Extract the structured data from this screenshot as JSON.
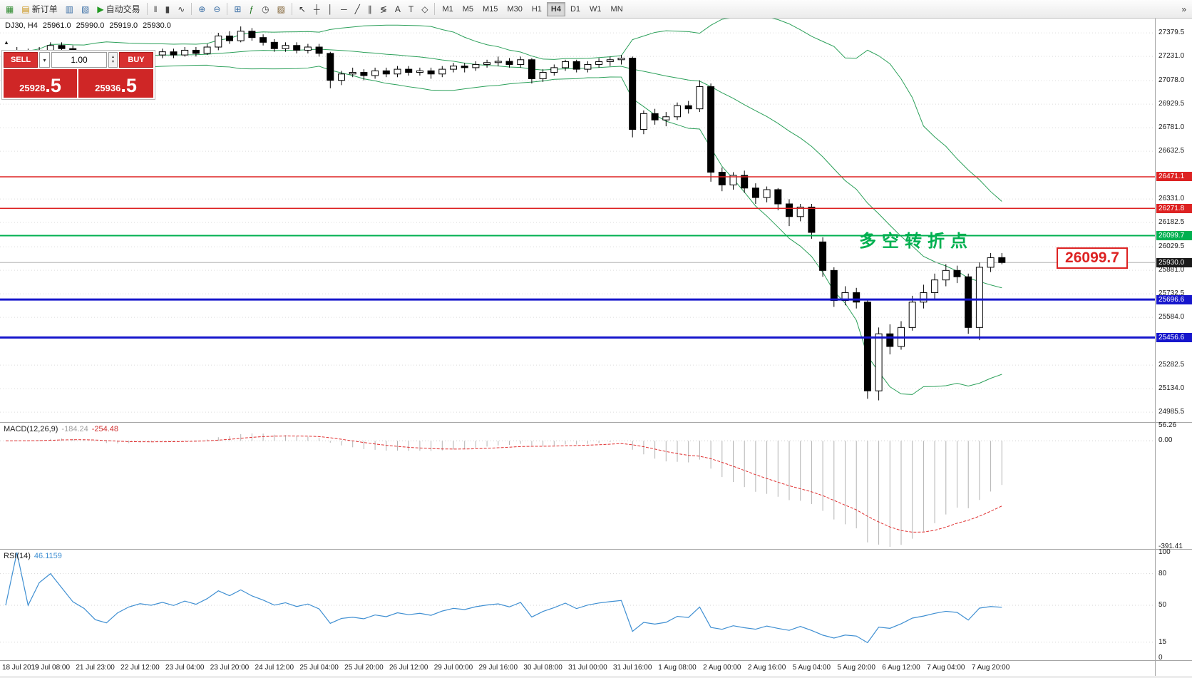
{
  "toolbar": {
    "groups": [
      {
        "name": "standard",
        "items": [
          {
            "name": "new-chart-button",
            "icon": "chart-grid-icon",
            "glyph": "▦",
            "color": "#2d8a2d"
          },
          {
            "name": "new-order-button",
            "icon": "new-order-icon",
            "glyph": "▤",
            "color": "#c89010",
            "label": "新订单"
          },
          {
            "name": "market-watch-button",
            "icon": "market-watch-icon",
            "glyph": "▥",
            "color": "#3a6ea5"
          },
          {
            "name": "navigator-button",
            "icon": "navigator-icon",
            "glyph": "▧",
            "color": "#3a6ea5"
          },
          {
            "name": "autotrading-button",
            "icon": "play-icon",
            "glyph": "▶",
            "color": "#229a22",
            "label": "自动交易"
          }
        ]
      },
      {
        "name": "chart-type",
        "items": [
          {
            "name": "bar-chart-button",
            "icon": "bars-icon",
            "glyph": "‖",
            "color": "#444444"
          },
          {
            "name": "candlestick-chart-button",
            "icon": "candlestick-icon",
            "glyph": "▮",
            "color": "#444444"
          },
          {
            "name": "line-chart-button",
            "icon": "line-chart-icon",
            "glyph": "∿",
            "color": "#444444"
          }
        ]
      },
      {
        "name": "zoom",
        "items": [
          {
            "name": "zoom-in-button",
            "icon": "zoom-in-icon",
            "glyph": "⊕",
            "color": "#3a6ea5"
          },
          {
            "name": "zoom-out-button",
            "icon": "zoom-out-icon",
            "glyph": "⊖",
            "color": "#3a6ea5"
          }
        ]
      },
      {
        "name": "windows",
        "items": [
          {
            "name": "tile-windows-button",
            "icon": "tile-windows-icon",
            "glyph": "⊞",
            "color": "#3a6ea5"
          },
          {
            "name": "indicators-button",
            "icon": "indicators-icon",
            "glyph": "ƒ",
            "color": "#207520"
          },
          {
            "name": "periods-button",
            "icon": "clock-icon",
            "glyph": "◷",
            "color": "#444444"
          },
          {
            "name": "templates-button",
            "icon": "templates-icon",
            "glyph": "▨",
            "color": "#7a5a2a"
          }
        ]
      },
      {
        "name": "tools",
        "items": [
          {
            "name": "cursor-button",
            "icon": "cursor-icon",
            "glyph": "↖",
            "color": "#333333"
          },
          {
            "name": "crosshair-button",
            "icon": "crosshair-icon",
            "glyph": "┼",
            "color": "#333333"
          },
          {
            "name": "vertical-line-button",
            "icon": "vertical-line-icon",
            "glyph": "│",
            "color": "#333333"
          },
          {
            "name": "horizontal-line-button",
            "icon": "horizontal-line-icon",
            "glyph": "─",
            "color": "#333333"
          },
          {
            "name": "trendline-button",
            "icon": "trendline-icon",
            "glyph": "╱",
            "color": "#333333"
          },
          {
            "name": "channel-button",
            "icon": "channel-icon",
            "glyph": "∥",
            "color": "#333333"
          },
          {
            "name": "fibonacci-button",
            "icon": "fibonacci-icon",
            "glyph": "≶",
            "color": "#333333"
          },
          {
            "name": "text-button",
            "icon": "text-icon",
            "glyph": "A",
            "color": "#333333"
          },
          {
            "name": "label-button",
            "icon": "label-icon",
            "glyph": "T",
            "color": "#333333"
          },
          {
            "name": "shapes-button",
            "icon": "shapes-icon",
            "glyph": "◇",
            "color": "#333333"
          }
        ]
      },
      {
        "name": "timeframes",
        "items": [
          {
            "name": "tf-m1-button",
            "label": "M1"
          },
          {
            "name": "tf-m5-button",
            "label": "M5"
          },
          {
            "name": "tf-m15-button",
            "label": "M15"
          },
          {
            "name": "tf-m30-button",
            "label": "M30"
          },
          {
            "name": "tf-h1-button",
            "label": "H1"
          },
          {
            "name": "tf-h4-button",
            "label": "H4",
            "active": true
          },
          {
            "name": "tf-d1-button",
            "label": "D1"
          },
          {
            "name": "tf-w1-button",
            "label": "W1"
          },
          {
            "name": "tf-mn-button",
            "label": "MN"
          }
        ]
      }
    ],
    "overflow": {
      "name": "toolbar-overflow-button",
      "glyph": "»"
    }
  },
  "trade_panel": {
    "collapse_icon": "▲",
    "sell_label": "SELL",
    "buy_label": "BUY",
    "volume": "1.00",
    "dropdown_icon": "▾",
    "spinner_up_icon": "▴",
    "spinner_down_icon": "▾",
    "sell_price_main": "25928",
    "sell_price_big": ".5",
    "buy_price_main": "25936",
    "buy_price_big": ".5"
  },
  "chart_data": {
    "type": "candlestick",
    "symbol": "DJ30",
    "timeframe": "H4",
    "title": "DJ30, H4",
    "last_ohlc": {
      "open": "25961.0",
      "high": "25990.0",
      "low": "25919.0",
      "close": "25930.0"
    },
    "ylim": [
      24923,
      27470
    ],
    "y_ticks": [
      "27379.5",
      "27231.0",
      "27078.0",
      "26929.5",
      "26781.0",
      "26632.5",
      "26331.0",
      "26182.5",
      "26029.5",
      "25881.0",
      "25732.5",
      "25584.0",
      "25282.5",
      "25134.0",
      "24985.5"
    ],
    "x_labels": [
      "18 Jul 2019",
      "19 Jul 08:00",
      "21 Jul 23:00",
      "22 Jul 12:00",
      "23 Jul 04:00",
      "23 Jul 20:00",
      "24 Jul 12:00",
      "25 Jul 04:00",
      "25 Jul 20:00",
      "26 Jul 12:00",
      "29 Jul 00:00",
      "29 Jul 16:00",
      "30 Jul 08:00",
      "31 Jul 00:00",
      "31 Jul 16:00",
      "1 Aug 08:00",
      "2 Aug 00:00",
      "2 Aug 16:00",
      "5 Aug 04:00",
      "5 Aug 20:00",
      "6 Aug 12:00",
      "7 Aug 04:00",
      "7 Aug 20:00"
    ],
    "ohlc": [
      [
        27200,
        27260,
        27170,
        27240
      ],
      [
        27240,
        27290,
        27210,
        27260
      ],
      [
        27260,
        27280,
        27210,
        27240
      ],
      [
        27240,
        27290,
        27220,
        27270
      ],
      [
        27270,
        27320,
        27250,
        27300
      ],
      [
        27300,
        27320,
        27260,
        27280
      ],
      [
        27280,
        27300,
        27230,
        27250
      ],
      [
        27250,
        27270,
        27200,
        27230
      ],
      [
        27230,
        27250,
        27150,
        27180
      ],
      [
        27180,
        27210,
        27130,
        27160
      ],
      [
        27160,
        27220,
        27140,
        27200
      ],
      [
        27200,
        27250,
        27180,
        27230
      ],
      [
        27230,
        27270,
        27200,
        27250
      ],
      [
        27250,
        27270,
        27210,
        27240
      ],
      [
        27240,
        27280,
        27220,
        27260
      ],
      [
        27260,
        27280,
        27220,
        27240
      ],
      [
        27240,
        27290,
        27230,
        27270
      ],
      [
        27270,
        27290,
        27230,
        27250
      ],
      [
        27250,
        27310,
        27240,
        27290
      ],
      [
        27290,
        27380,
        27270,
        27360
      ],
      [
        27360,
        27390,
        27310,
        27330
      ],
      [
        27330,
        27420,
        27320,
        27390
      ],
      [
        27390,
        27410,
        27330,
        27350
      ],
      [
        27350,
        27370,
        27300,
        27320
      ],
      [
        27320,
        27340,
        27260,
        27280
      ],
      [
        27280,
        27320,
        27260,
        27300
      ],
      [
        27300,
        27320,
        27250,
        27270
      ],
      [
        27270,
        27310,
        27250,
        27290
      ],
      [
        27290,
        27310,
        27230,
        27250
      ],
      [
        27250,
        27260,
        27030,
        27080
      ],
      [
        27080,
        27140,
        27050,
        27120
      ],
      [
        27120,
        27160,
        27100,
        27130
      ],
      [
        27130,
        27150,
        27080,
        27110
      ],
      [
        27110,
        27160,
        27090,
        27140
      ],
      [
        27140,
        27160,
        27100,
        27120
      ],
      [
        27120,
        27170,
        27100,
        27150
      ],
      [
        27150,
        27170,
        27110,
        27130
      ],
      [
        27130,
        27160,
        27110,
        27140
      ],
      [
        27140,
        27160,
        27090,
        27120
      ],
      [
        27120,
        27170,
        27100,
        27150
      ],
      [
        27150,
        27190,
        27130,
        27170
      ],
      [
        27170,
        27190,
        27130,
        27160
      ],
      [
        27160,
        27200,
        27140,
        27180
      ],
      [
        27180,
        27210,
        27160,
        27192
      ],
      [
        27192,
        27230,
        27170,
        27200
      ],
      [
        27200,
        27220,
        27160,
        27180
      ],
      [
        27180,
        27230,
        27160,
        27210
      ],
      [
        27210,
        27220,
        27060,
        27090
      ],
      [
        27090,
        27150,
        27070,
        27130
      ],
      [
        27130,
        27180,
        27110,
        27160
      ],
      [
        27160,
        27210,
        27140,
        27198
      ],
      [
        27198,
        27210,
        27130,
        27150
      ],
      [
        27150,
        27200,
        27130,
        27180
      ],
      [
        27180,
        27220,
        27160,
        27198
      ],
      [
        27198,
        27230,
        27170,
        27210
      ],
      [
        27210,
        27240,
        27180,
        27220
      ],
      [
        27220,
        27230,
        26720,
        26770
      ],
      [
        26770,
        26890,
        26740,
        26870
      ],
      [
        26870,
        26900,
        26800,
        26830
      ],
      [
        26830,
        26880,
        26790,
        26850
      ],
      [
        26850,
        26940,
        26830,
        26920
      ],
      [
        26920,
        26950,
        26870,
        26900
      ],
      [
        26900,
        27080,
        26880,
        27040
      ],
      [
        27040,
        27060,
        26440,
        26500
      ],
      [
        26500,
        26530,
        26380,
        26420
      ],
      [
        26420,
        26500,
        26390,
        26480
      ],
      [
        26480,
        26510,
        26370,
        26400
      ],
      [
        26400,
        26430,
        26300,
        26340
      ],
      [
        26340,
        26410,
        26310,
        26390
      ],
      [
        26390,
        26400,
        26260,
        26300
      ],
      [
        26300,
        26330,
        26160,
        26220
      ],
      [
        26220,
        26300,
        26190,
        26280
      ],
      [
        26280,
        26300,
        26080,
        26120
      ],
      [
        26060,
        26090,
        25840,
        25880
      ],
      [
        25880,
        25900,
        25650,
        25690
      ],
      [
        25690,
        25780,
        25660,
        25740
      ],
      [
        25740,
        25770,
        25640,
        25680
      ],
      [
        25680,
        25700,
        25070,
        25120
      ],
      [
        25120,
        25520,
        25060,
        25480
      ],
      [
        25480,
        25540,
        25350,
        25400
      ],
      [
        25400,
        25560,
        25380,
        25520
      ],
      [
        25520,
        25720,
        25500,
        25680
      ],
      [
        25680,
        25790,
        25640,
        25740
      ],
      [
        25740,
        25860,
        25700,
        25820
      ],
      [
        25820,
        25920,
        25780,
        25880
      ],
      [
        25880,
        25910,
        25800,
        25840
      ],
      [
        25840,
        25860,
        25480,
        25520
      ],
      [
        25520,
        25930,
        25440,
        25900
      ],
      [
        25900,
        25990,
        25870,
        25960
      ],
      [
        25961,
        25990,
        25919,
        25930
      ]
    ],
    "overlays": {
      "bollinger_bands": {
        "period": 20,
        "deviation": 2,
        "color": "#2ca05a"
      }
    },
    "objects": {
      "hlines": [
        {
          "price": 26471.1,
          "label": "26471.1",
          "color": "#dd2222",
          "width": 1.5
        },
        {
          "price": 26271.8,
          "label": "26271.8",
          "color": "#dd2222",
          "width": 1.5
        },
        {
          "price": 26099.7,
          "label": "26099.7",
          "color": "#00b050",
          "width": 2
        },
        {
          "price": 25696.6,
          "label": "25696.6",
          "color": "#1616cc",
          "width": 3
        },
        {
          "price": 25456.6,
          "label": "25456.6",
          "color": "#1616cc",
          "width": 3
        }
      ],
      "bid_line": {
        "price": 25930.0,
        "label": "25930.0",
        "line_color": "#b4b4b4",
        "tag_bg": "#1a1a1a"
      },
      "annotation": {
        "text": "多空转折点",
        "color": "#00b050"
      },
      "callout": {
        "text": "26099.7",
        "color": "#dd2222"
      }
    },
    "indicator_panels": [
      {
        "type": "macd",
        "label": "MACD(12,26,9)",
        "params": [
          12,
          26,
          9
        ],
        "value": "-184.24",
        "signal": "-254.48",
        "scale_labels": [
          "56.26",
          "0.00",
          "-391.41"
        ],
        "histogram_color": "#b2b2b2",
        "signal_color": "#e03030"
      },
      {
        "type": "rsi",
        "label": "RSI(14)",
        "period": 14,
        "value": "46.1159",
        "levels": [
          "100",
          "80",
          "50",
          "15",
          "0"
        ],
        "line_color": "#3f8fd2"
      }
    ]
  }
}
